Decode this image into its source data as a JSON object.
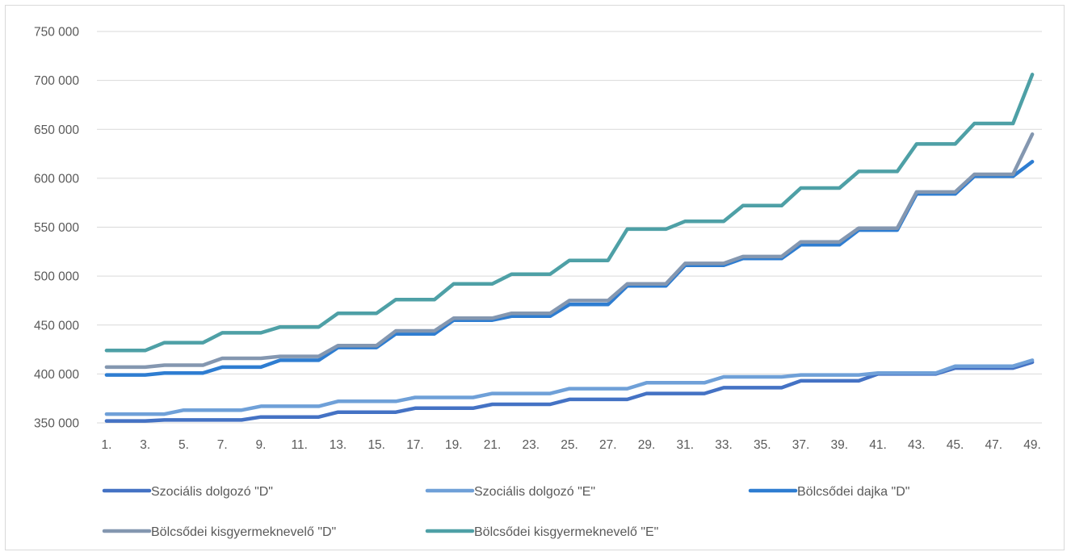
{
  "chart_data": {
    "type": "line",
    "x_categories": [
      "1.",
      "2.",
      "3.",
      "4.",
      "5.",
      "6.",
      "7.",
      "8.",
      "9.",
      "10.",
      "11.",
      "12.",
      "13.",
      "14.",
      "15.",
      "16.",
      "17.",
      "18.",
      "19.",
      "20.",
      "21.",
      "22.",
      "23.",
      "24.",
      "25.",
      "26.",
      "27.",
      "28.",
      "29.",
      "30.",
      "31.",
      "32.",
      "33.",
      "34.",
      "35.",
      "36.",
      "37.",
      "38.",
      "39.",
      "40.",
      "41.",
      "42.",
      "43.",
      "44.",
      "45.",
      "46.",
      "47.",
      "48.",
      "49."
    ],
    "x_tick_labels_shown": [
      "1.",
      "3.",
      "5.",
      "7.",
      "9.",
      "11.",
      "13.",
      "15.",
      "17.",
      "19.",
      "21.",
      "23.",
      "25.",
      "27.",
      "29.",
      "31.",
      "33.",
      "35.",
      "37.",
      "39.",
      "41.",
      "43.",
      "45.",
      "47.",
      "49."
    ],
    "y_range": [
      350000,
      750000
    ],
    "y_step": 50000,
    "y_tick_labels": [
      "350 000",
      "400 000",
      "450 000",
      "500 000",
      "550 000",
      "600 000",
      "650 000",
      "700 000",
      "750 000"
    ],
    "grid": "horizontal",
    "legend_position": "bottom",
    "series": [
      {
        "name": "Szociális dolgozó \"D\"",
        "color": "#4472C4",
        "values": [
          352000,
          352000,
          352000,
          353000,
          353000,
          353000,
          353000,
          353000,
          356000,
          356000,
          356000,
          356000,
          361000,
          361000,
          361000,
          361000,
          365000,
          365000,
          365000,
          365000,
          369000,
          369000,
          369000,
          369000,
          374000,
          374000,
          374000,
          374000,
          380000,
          380000,
          380000,
          380000,
          386000,
          386000,
          386000,
          386000,
          393000,
          393000,
          393000,
          393000,
          400000,
          400000,
          400000,
          400000,
          406000,
          406000,
          406000,
          406000,
          412000
        ]
      },
      {
        "name": "Szociális dolgozó \"E\"",
        "color": "#6FA0D8",
        "values": [
          359000,
          359000,
          359000,
          359000,
          363000,
          363000,
          363000,
          363000,
          367000,
          367000,
          367000,
          367000,
          372000,
          372000,
          372000,
          372000,
          376000,
          376000,
          376000,
          376000,
          380000,
          380000,
          380000,
          380000,
          385000,
          385000,
          385000,
          385000,
          391000,
          391000,
          391000,
          391000,
          397000,
          397000,
          397000,
          397000,
          399000,
          399000,
          399000,
          399000,
          401000,
          401000,
          401000,
          401000,
          408000,
          408000,
          408000,
          408000,
          414000
        ]
      },
      {
        "name": "Bölcsődei dajka \"D\"",
        "color": "#2E7DD1",
        "values": [
          399000,
          399000,
          399000,
          401000,
          401000,
          401000,
          407000,
          407000,
          407000,
          414000,
          414000,
          414000,
          427000,
          427000,
          427000,
          441000,
          441000,
          441000,
          455000,
          455000,
          455000,
          459000,
          459000,
          459000,
          471000,
          471000,
          471000,
          490000,
          490000,
          490000,
          511000,
          511000,
          511000,
          518000,
          518000,
          518000,
          532000,
          532000,
          532000,
          547000,
          547000,
          547000,
          584000,
          584000,
          584000,
          602000,
          602000,
          602000,
          617000
        ]
      },
      {
        "name": "Bölcsődei kisgyermeknevelő \"D\"",
        "color": "#8497B0",
        "values": [
          407000,
          407000,
          407000,
          409000,
          409000,
          409000,
          416000,
          416000,
          416000,
          418000,
          418000,
          418000,
          429000,
          429000,
          429000,
          444000,
          444000,
          444000,
          457000,
          457000,
          457000,
          462000,
          462000,
          462000,
          475000,
          475000,
          475000,
          492000,
          492000,
          492000,
          513000,
          513000,
          513000,
          520000,
          520000,
          520000,
          535000,
          535000,
          535000,
          549000,
          549000,
          549000,
          586000,
          586000,
          586000,
          604000,
          604000,
          604000,
          645000
        ]
      },
      {
        "name": "Bölcsődei kisgyermeknevelő \"E\"",
        "color": "#4EA0A6",
        "values": [
          424000,
          424000,
          424000,
          432000,
          432000,
          432000,
          442000,
          442000,
          442000,
          448000,
          448000,
          448000,
          462000,
          462000,
          462000,
          476000,
          476000,
          476000,
          492000,
          492000,
          492000,
          502000,
          502000,
          502000,
          516000,
          516000,
          516000,
          548000,
          548000,
          548000,
          556000,
          556000,
          556000,
          572000,
          572000,
          572000,
          590000,
          590000,
          590000,
          607000,
          607000,
          607000,
          635000,
          635000,
          635000,
          656000,
          656000,
          656000,
          706000
        ]
      }
    ]
  }
}
